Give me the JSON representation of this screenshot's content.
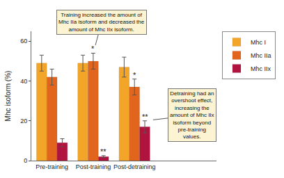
{
  "chart_data": {
    "type": "bar",
    "y_label": "Mhc isoform (%)",
    "categories": [
      "Pre-training",
      "Post-training",
      "Post-detraining"
    ],
    "series": [
      {
        "name": "Mhc I",
        "color": "#f2a528",
        "values": [
          49,
          49,
          47
        ],
        "errors": [
          4,
          4,
          5
        ],
        "significance": [
          null,
          null,
          null
        ]
      },
      {
        "name": "Mhc IIa",
        "color": "#e2651e",
        "values": [
          42,
          50,
          37
        ],
        "errors": [
          4,
          4,
          4
        ],
        "significance": [
          null,
          "*",
          "*"
        ]
      },
      {
        "name": "Mhc IIx",
        "color": "#b0143e",
        "values": [
          9,
          2,
          17
        ],
        "errors": [
          2,
          0.5,
          3
        ],
        "significance": [
          null,
          "**",
          "**"
        ]
      }
    ],
    "ylim": [
      0,
      65
    ],
    "yticks": [
      0,
      20,
      40,
      60
    ],
    "grid": false,
    "legend": "top right",
    "annotations": [
      {
        "text": "Training increased the amount of Mhc IIa isoform and decreased the amount of Mhc IIx isoform.",
        "category": "Post-training",
        "series": "Mhc IIa"
      },
      {
        "text": "Detraining had an overshoot effect, increasing the amount of Mhc IIx isoform beyond pre-training values.",
        "category": "Post-detraining",
        "series": "Mhc IIx"
      }
    ]
  }
}
